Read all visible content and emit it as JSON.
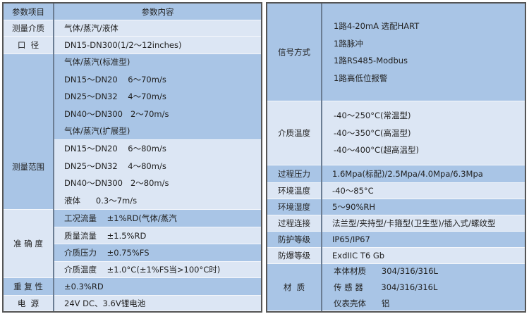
{
  "left": {
    "header": {
      "key": "参数项目",
      "value": "参数内容"
    },
    "medium": {
      "key": "测量介质",
      "value": "气体/蒸汽/液体"
    },
    "diameter": {
      "key": "口  径",
      "value": "DN15-DN300(1/2～12inches)"
    },
    "range": {
      "key": "测量范围",
      "standard": [
        "气体/蒸汽(标准型)",
        "DN15～DN20    6～70m/s",
        "DN25～DN32    4～70m/s",
        "DN40～DN300   2～70m/s",
        "气体/蒸汽(扩展型)"
      ],
      "extended": [
        "DN15～DN20    6～80m/s",
        "DN25～DN32    4～80m/s",
        "DN40～DN300   2～80m/s",
        "液体      0.3～7m/s"
      ]
    },
    "accuracy": {
      "key": "准 确 度",
      "items": [
        "工况流量    ±1%RD(气体/蒸汽",
        "质量流量    ±1.5%RD",
        "介质压力    ±0.75%FS",
        "介质温度    ±1.0°C(±1%FS当>100°C时)"
      ]
    },
    "repeatability": {
      "key": "重 复 性",
      "value": "±0.3%RD"
    },
    "power": {
      "key": "电  源",
      "value": "24V DC、3.6V锂电池"
    }
  },
  "right": {
    "signal": {
      "key": "信号方式",
      "items": [
        "1路4-20mA 选配HART",
        "1路脉冲",
        "1路RS485-Modbus",
        "1路高低位报警"
      ]
    },
    "medium_temp": {
      "key": "介质温度",
      "items": [
        "-40～250°C(常温型)",
        "-40～350°C(高温型)",
        "-40～400°C(超高温型)"
      ]
    },
    "pressure": {
      "key": "过程压力",
      "value": "1.6Mpa(标配)/2.5Mpa/4.0Mpa/6.3Mpa"
    },
    "ambient_temp": {
      "key": "环境温度",
      "value": "-40～85°C"
    },
    "humidity": {
      "key": "环境湿度",
      "value": "5～90%RH"
    },
    "connection": {
      "key": "过程连接",
      "value": "法兰型/夹持型/卡箍型(卫生型)/插入式/螺纹型"
    },
    "protection": {
      "key": "防护等级",
      "value": "IP65/IP67"
    },
    "explosion": {
      "key": "防爆等级",
      "value": "ExdIIC T6 Gb"
    },
    "material": {
      "key": "材  质",
      "items": [
        "本体材质      304/316/316L",
        "传 感 器       304/316/316L",
        "仪表壳体      铝"
      ]
    }
  }
}
